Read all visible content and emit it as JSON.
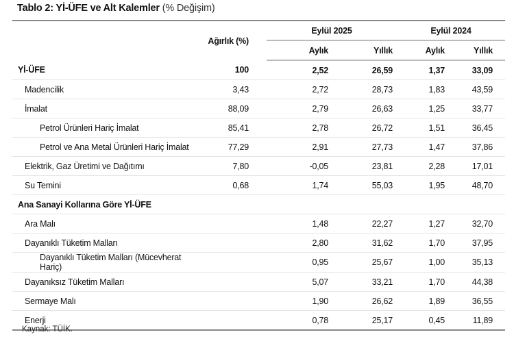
{
  "title": {
    "bold": "Tablo 2: Yİ-ÜFE ve Alt Kalemler",
    "normal": "(% Değişim)"
  },
  "header": {
    "weight": "Ağırlık (%)",
    "period1": "Eylül 2025",
    "period2": "Eylül 2024",
    "monthly": "Aylık",
    "annual": "Yıllık"
  },
  "rows": [
    {
      "label": "Yİ-ÜFE",
      "weight": "100",
      "m1": "2,52",
      "a1": "26,59",
      "m2": "1,37",
      "a2": "33,09",
      "bold": true,
      "level": 0
    },
    {
      "label": "Madencilik",
      "weight": "3,43",
      "m1": "2,72",
      "a1": "28,73",
      "m2": "1,83",
      "a2": "43,59",
      "level": 1
    },
    {
      "label": "İmalat",
      "weight": "88,09",
      "m1": "2,79",
      "a1": "26,63",
      "m2": "1,25",
      "a2": "33,77",
      "level": 1
    },
    {
      "label": "Petrol Ürünleri Hariç İmalat",
      "weight": "85,41",
      "m1": "2,78",
      "a1": "26,72",
      "m2": "1,51",
      "a2": "36,45",
      "level": 2
    },
    {
      "label": "Petrol ve Ana Metal Ürünleri Hariç İmalat",
      "weight": "77,29",
      "m1": "2,91",
      "a1": "27,73",
      "m2": "1,47",
      "a2": "37,86",
      "level": 2
    },
    {
      "label": "Elektrik, Gaz Üretimi ve Dağıtımı",
      "weight": "7,80",
      "m1": "-0,05",
      "a1": "23,81",
      "m2": "2,28",
      "a2": "17,01",
      "level": 1
    },
    {
      "label": "Su Temini",
      "weight": "0,68",
      "m1": "1,74",
      "a1": "55,03",
      "m2": "1,95",
      "a2": "48,70",
      "level": 1
    },
    {
      "label": "Ana Sanayi Kollarına Göre Yİ-ÜFE",
      "weight": "",
      "m1": "",
      "a1": "",
      "m2": "",
      "a2": "",
      "bold": true,
      "level": 0
    },
    {
      "label": "Ara Malı",
      "weight": "",
      "m1": "1,48",
      "a1": "22,27",
      "m2": "1,27",
      "a2": "32,70",
      "level": 1
    },
    {
      "label": "Dayanıklı Tüketim Malları",
      "weight": "",
      "m1": "2,80",
      "a1": "31,62",
      "m2": "1,70",
      "a2": "37,95",
      "level": 1
    },
    {
      "label": "Dayanıklı Tüketim Malları (Mücevherat Hariç)",
      "weight": "",
      "m1": "0,95",
      "a1": "25,67",
      "m2": "1,00",
      "a2": "35,13",
      "level": 2
    },
    {
      "label": "Dayanıksız Tüketim Malları",
      "weight": "",
      "m1": "5,07",
      "a1": "33,21",
      "m2": "1,70",
      "a2": "44,38",
      "level": 1
    },
    {
      "label": "Sermaye Malı",
      "weight": "",
      "m1": "1,90",
      "a1": "26,62",
      "m2": "1,89",
      "a2": "36,55",
      "level": 1
    },
    {
      "label": "Enerji",
      "weight": "",
      "m1": "0,78",
      "a1": "25,17",
      "m2": "0,45",
      "a2": "11,89",
      "level": 1
    }
  ],
  "source": "Kaynak: TÜİK."
}
